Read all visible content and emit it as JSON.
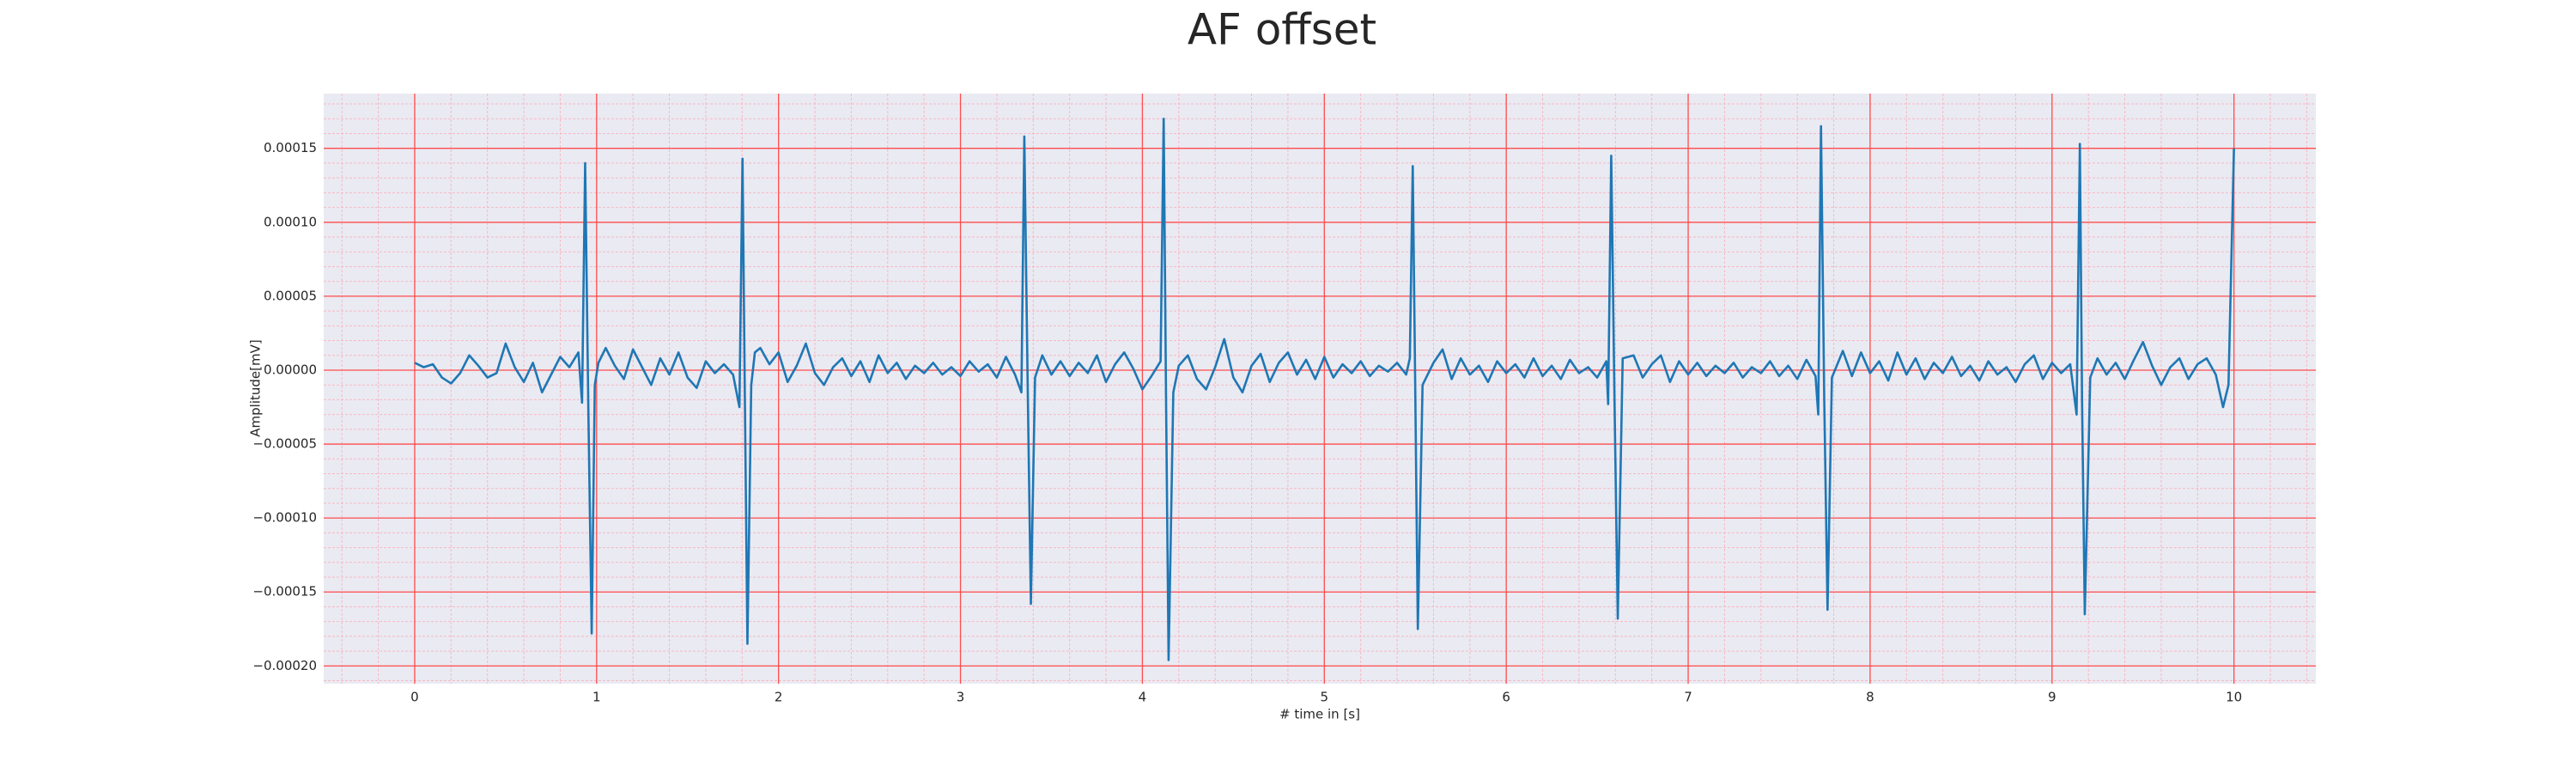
{
  "chart_data": {
    "type": "line",
    "title": "AF offset",
    "xlabel": "# time in [s]",
    "ylabel": "Amplitude[mV]",
    "xlim": [
      -0.5,
      10.45
    ],
    "ylim": [
      -0.000212,
      0.000187
    ],
    "xticks": [
      0,
      1,
      2,
      3,
      4,
      5,
      6,
      7,
      8,
      9,
      10
    ],
    "yticks": [
      {
        "value": 0.00015,
        "label": "0.00015"
      },
      {
        "value": 0.0001,
        "label": "0.00010"
      },
      {
        "value": 5e-05,
        "label": "0.00005"
      },
      {
        "value": 0,
        "label": "0.00000"
      },
      {
        "value": -5e-05,
        "label": "−0.00005"
      },
      {
        "value": -0.0001,
        "label": "−0.00010"
      },
      {
        "value": -0.00015,
        "label": "−0.00015"
      },
      {
        "value": -0.0002,
        "label": "−0.00020"
      }
    ],
    "grid": true,
    "grid_color": "#ff4d4d",
    "minor_grid": {
      "x_step": 0.2,
      "y_step": 1e-05,
      "color": "#f7b8c4"
    },
    "background": "#eaeaf2",
    "series": [
      {
        "color": "#1f77b4",
        "x": [
          0,
          0.05,
          0.1,
          0.15,
          0.2,
          0.25,
          0.3,
          0.35,
          0.4,
          0.45,
          0.5,
          0.55,
          0.6,
          0.65,
          0.7,
          0.75,
          0.8,
          0.85,
          0.9,
          0.92,
          0.937,
          0.955,
          0.973,
          0.99,
          1.01,
          1.05,
          1.1,
          1.15,
          1.2,
          1.25,
          1.3,
          1.35,
          1.4,
          1.45,
          1.5,
          1.55,
          1.6,
          1.65,
          1.7,
          1.75,
          1.785,
          1.802,
          1.815,
          1.829,
          1.85,
          1.87,
          1.9,
          1.95,
          2.0,
          2.05,
          2.1,
          2.15,
          2.2,
          2.25,
          2.3,
          2.35,
          2.4,
          2.45,
          2.5,
          2.55,
          2.6,
          2.65,
          2.7,
          2.75,
          2.8,
          2.85,
          2.9,
          2.95,
          3.0,
          3.05,
          3.1,
          3.15,
          3.2,
          3.25,
          3.3,
          3.335,
          3.351,
          3.37,
          3.387,
          3.41,
          3.45,
          3.5,
          3.55,
          3.6,
          3.65,
          3.7,
          3.75,
          3.8,
          3.85,
          3.9,
          3.95,
          4.0,
          4.05,
          4.1,
          4.117,
          4.13,
          4.144,
          4.17,
          4.2,
          4.25,
          4.3,
          4.35,
          4.4,
          4.45,
          4.5,
          4.55,
          4.6,
          4.65,
          4.7,
          4.75,
          4.8,
          4.85,
          4.9,
          4.95,
          5.0,
          5.05,
          5.1,
          5.15,
          5.2,
          5.25,
          5.3,
          5.35,
          5.4,
          5.45,
          5.47,
          5.486,
          5.5,
          5.514,
          5.54,
          5.6,
          5.65,
          5.7,
          5.75,
          5.8,
          5.85,
          5.9,
          5.95,
          6.0,
          6.05,
          6.1,
          6.15,
          6.2,
          6.25,
          6.3,
          6.35,
          6.4,
          6.45,
          6.5,
          6.55,
          6.56,
          6.577,
          6.595,
          6.613,
          6.64,
          6.7,
          6.75,
          6.8,
          6.85,
          6.9,
          6.95,
          7.0,
          7.05,
          7.1,
          7.15,
          7.2,
          7.25,
          7.3,
          7.35,
          7.4,
          7.45,
          7.5,
          7.55,
          7.6,
          7.65,
          7.7,
          7.715,
          7.73,
          7.748,
          7.766,
          7.79,
          7.85,
          7.9,
          7.95,
          8.0,
          8.05,
          8.1,
          8.15,
          8.2,
          8.25,
          8.3,
          8.35,
          8.4,
          8.45,
          8.5,
          8.55,
          8.6,
          8.65,
          8.7,
          8.75,
          8.8,
          8.85,
          8.9,
          8.95,
          9.0,
          9.05,
          9.1,
          9.135,
          9.153,
          9.165,
          9.18,
          9.21,
          9.25,
          9.3,
          9.35,
          9.4,
          9.45,
          9.5,
          9.55,
          9.6,
          9.65,
          9.7,
          9.75,
          9.8,
          9.85,
          9.9,
          9.94,
          9.97,
          10.0
        ],
        "values": [
          5e-06,
          2e-06,
          4e-06,
          -5e-06,
          -9e-06,
          -2e-06,
          1e-05,
          3e-06,
          -5e-06,
          -2e-06,
          1.8e-05,
          2e-06,
          -8e-06,
          5e-06,
          -1.5e-05,
          -3e-06,
          9e-06,
          2e-06,
          1.2e-05,
          -2.2e-05,
          0.00014,
          -3e-05,
          -0.000178,
          -1e-05,
          5e-06,
          1.5e-05,
          3e-06,
          -6e-06,
          1.4e-05,
          2e-06,
          -1e-05,
          8e-06,
          -3e-06,
          1.2e-05,
          -5e-06,
          -1.2e-05,
          6e-06,
          -2e-06,
          4e-06,
          -3e-06,
          -2.5e-05,
          0.000143,
          -2e-05,
          -0.000185,
          -1e-05,
          1.2e-05,
          1.5e-05,
          4e-06,
          1.2e-05,
          -8e-06,
          3e-06,
          1.8e-05,
          -2e-06,
          -1e-05,
          2e-06,
          8e-06,
          -4e-06,
          6e-06,
          -8e-06,
          1e-05,
          -2e-06,
          5e-06,
          -6e-06,
          3e-06,
          -2e-06,
          5e-06,
          -3e-06,
          2e-06,
          -4e-06,
          6e-06,
          -1e-06,
          4e-06,
          -5e-06,
          9e-06,
          -3e-06,
          -1.5e-05,
          0.000158,
          -1.5e-05,
          -0.000158,
          -5e-06,
          1e-05,
          -3e-06,
          6e-06,
          -4e-06,
          5e-06,
          -2e-06,
          1e-05,
          -8e-06,
          4e-06,
          1.2e-05,
          1e-06,
          -1.3e-05,
          -4e-06,
          6e-06,
          0.00017,
          -2e-05,
          -0.000196,
          -1.5e-05,
          3e-06,
          1e-05,
          -6e-06,
          -1.3e-05,
          2e-06,
          2.1e-05,
          -5e-06,
          -1.5e-05,
          3e-06,
          1.1e-05,
          -8e-06,
          5e-06,
          1.2e-05,
          -3e-06,
          7e-06,
          -6e-06,
          9e-06,
          -5e-06,
          4e-06,
          -2e-06,
          6e-06,
          -4e-06,
          3e-06,
          -1e-06,
          5e-06,
          -3e-06,
          8e-06,
          0.000138,
          -1.5e-05,
          -0.000175,
          -1e-05,
          5e-06,
          1.4e-05,
          -6e-06,
          8e-06,
          -3e-06,
          3e-06,
          -8e-06,
          6e-06,
          -2e-06,
          4e-06,
          -5e-06,
          8e-06,
          -4e-06,
          3e-06,
          -6e-06,
          7e-06,
          -2e-06,
          2e-06,
          -5e-06,
          6e-06,
          -2.3e-05,
          0.000145,
          -2e-05,
          -0.000168,
          8e-06,
          1e-05,
          -5e-06,
          4e-06,
          1e-05,
          -8e-06,
          6e-06,
          -3e-06,
          5e-06,
          -4e-06,
          3e-06,
          -2e-06,
          5e-06,
          -5e-06,
          2e-06,
          -2e-06,
          6e-06,
          -4e-06,
          3e-06,
          -6e-06,
          7e-06,
          -4e-06,
          -3e-05,
          0.000165,
          -2e-05,
          -0.000162,
          -5e-06,
          1.3e-05,
          -4e-06,
          1.2e-05,
          -2e-06,
          6e-06,
          -7e-06,
          1.2e-05,
          -3e-06,
          8e-06,
          -6e-06,
          5e-06,
          -2e-06,
          9e-06,
          -4e-06,
          3e-06,
          -7e-06,
          6e-06,
          -3e-06,
          2e-06,
          -8e-06,
          4e-06,
          1e-05,
          -6e-06,
          5e-06,
          -2e-06,
          4e-06,
          -3e-05,
          0.000153,
          -2e-05,
          -0.000165,
          -5e-06,
          8e-06,
          -3e-06,
          5e-06,
          -6e-06,
          7e-06,
          1.9e-05,
          3e-06,
          -1e-05,
          2e-06,
          8e-06,
          -6e-06,
          4e-06,
          8e-06,
          -3e-06,
          -2.5e-05,
          -1e-05,
          0.00015
        ]
      }
    ]
  }
}
